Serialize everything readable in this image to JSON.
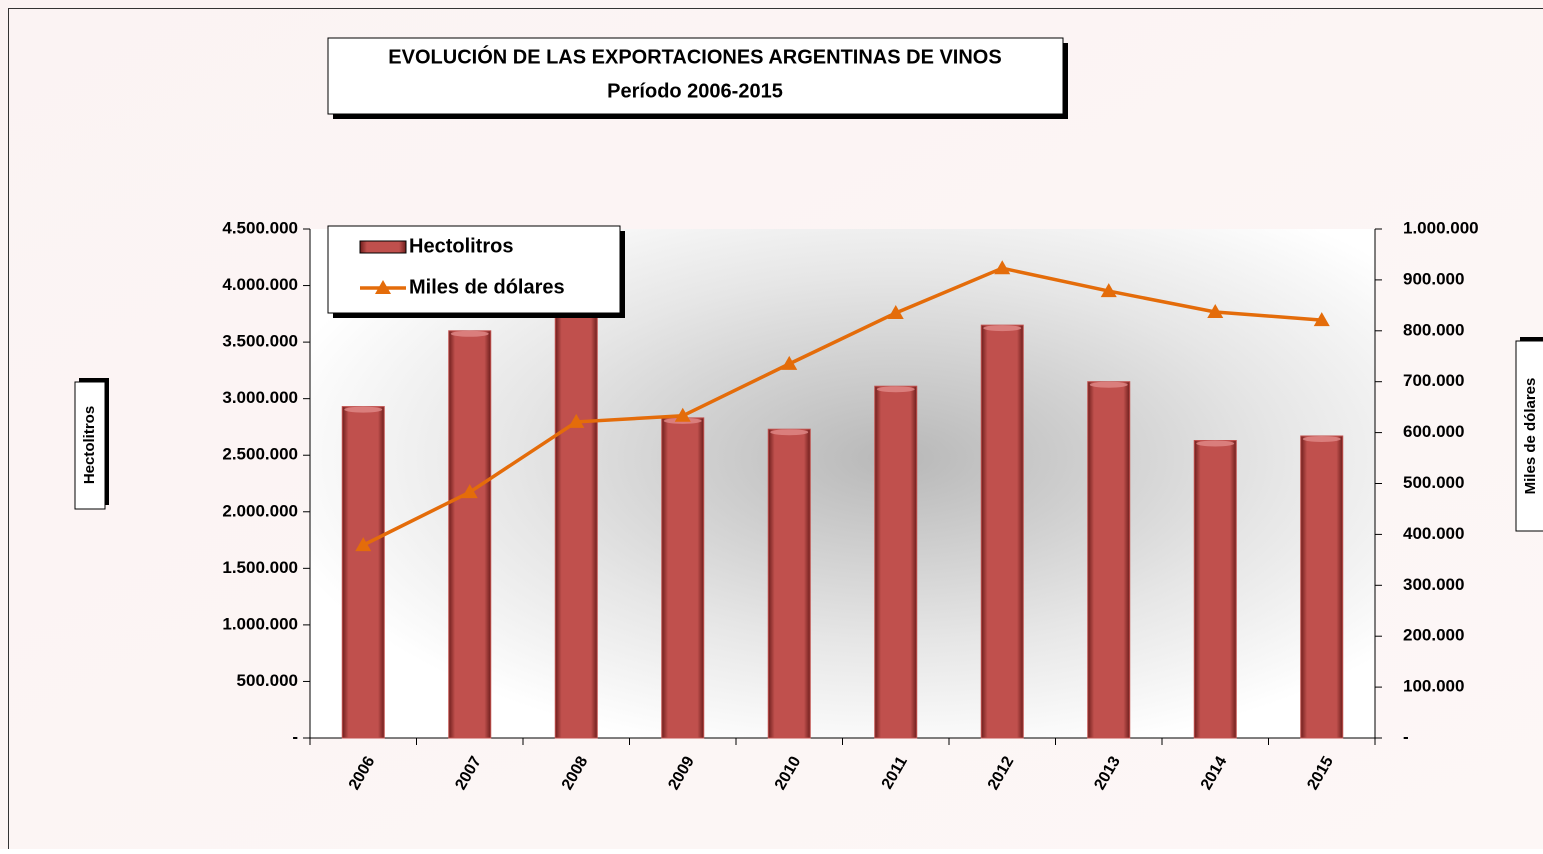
{
  "chart_data": {
    "type": "bar_line",
    "title": "EVOLUCIÓN DE LAS EXPORTACIONES ARGENTINAS DE VINOS",
    "subtitle": "Período 2006-2015",
    "y_label": "Hectolitros",
    "y2_label": "Miles de dólares",
    "categories": [
      "2006",
      "2007",
      "2008",
      "2009",
      "2010",
      "2011",
      "2012",
      "2013",
      "2014",
      "2015"
    ],
    "series": [
      {
        "name": "Hectolitros",
        "type": "bar",
        "color": "#c0504d",
        "values": [
          2930000,
          3600000,
          3950000,
          2830000,
          2730000,
          3110000,
          3650000,
          3150000,
          2630000,
          2670000
        ]
      },
      {
        "name": "Miles de dólares",
        "type": "line",
        "axis": "y2",
        "color": "#e46c0a",
        "values": [
          379000,
          483000,
          621000,
          633000,
          735000,
          835000,
          923000,
          878000,
          837000,
          821000
        ]
      }
    ],
    "ylim": [
      0,
      4500000
    ],
    "yticks": [
      {
        "value": 0,
        "label": "-"
      },
      {
        "value": 500000,
        "label": "500.000"
      },
      {
        "value": 1000000,
        "label": "1.000.000"
      },
      {
        "value": 1500000,
        "label": "1.500.000"
      },
      {
        "value": 2000000,
        "label": "2.000.000"
      },
      {
        "value": 2500000,
        "label": "2.500.000"
      },
      {
        "value": 3000000,
        "label": "3.000.000"
      },
      {
        "value": 3500000,
        "label": "3.500.000"
      },
      {
        "value": 4000000,
        "label": "4.000.000"
      },
      {
        "value": 4500000,
        "label": "4.500.000"
      }
    ],
    "y2lim": [
      0,
      1000000
    ],
    "y2ticks": [
      {
        "value": 0,
        "label": "-"
      },
      {
        "value": 100000,
        "label": "100.000"
      },
      {
        "value": 200000,
        "label": "200.000"
      },
      {
        "value": 300000,
        "label": "300.000"
      },
      {
        "value": 400000,
        "label": "400.000"
      },
      {
        "value": 500000,
        "label": "500.000"
      },
      {
        "value": 600000,
        "label": "600.000"
      },
      {
        "value": 700000,
        "label": "700.000"
      },
      {
        "value": 800000,
        "label": "800.000"
      },
      {
        "value": 900000,
        "label": "900.000"
      },
      {
        "value": 1000000,
        "label": "1.000.000"
      }
    ],
    "legend": "top-left"
  }
}
